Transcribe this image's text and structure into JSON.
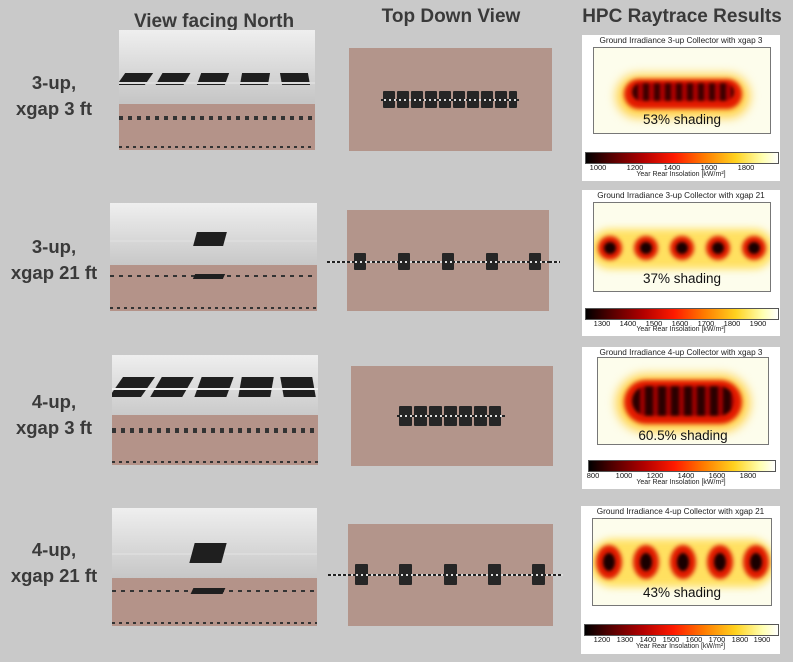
{
  "headers": {
    "north": "View facing North",
    "topdown": "Top Down View",
    "results": "HPC Raytrace Results"
  },
  "rows": [
    {
      "label_line1": "3-up,",
      "label_line2": "xgap 3 ft",
      "card_title": "Ground Irradiance 3-up Collector with xgap 3",
      "shading": "53% shading",
      "colorbar_ticks": [
        "1000",
        "1200",
        "1400",
        "1600",
        "1800"
      ],
      "colorbar_label": "Year Rear Insolation [kW/m²]"
    },
    {
      "label_line1": "3-up,",
      "label_line2": "xgap 21 ft",
      "card_title": "Ground Irradiance 3-up Collector with xgap 21",
      "shading": "37% shading",
      "colorbar_ticks": [
        "1300",
        "1400",
        "1500",
        "1600",
        "1700",
        "1800",
        "1900"
      ],
      "colorbar_label": "Year Rear Insolation [kW/m²]"
    },
    {
      "label_line1": "4-up,",
      "label_line2": "xgap 3 ft",
      "card_title": "Ground Irradiance 4-up Collector with xgap 3",
      "shading": "60.5% shading",
      "colorbar_ticks": [
        "800",
        "1000",
        "1200",
        "1400",
        "1600",
        "1800"
      ],
      "colorbar_label": "Year Rear Insolation [kW/m²]"
    },
    {
      "label_line1": "4-up,",
      "label_line2": "xgap 21 ft",
      "card_title": "Ground Irradiance 4-up Collector with xgap 21",
      "shading": "43% shading",
      "colorbar_ticks": [
        "1200",
        "1300",
        "1400",
        "1500",
        "1600",
        "1700",
        "1800",
        "1900"
      ],
      "colorbar_label": "Year Rear Insolation [kW/m²]"
    }
  ]
}
